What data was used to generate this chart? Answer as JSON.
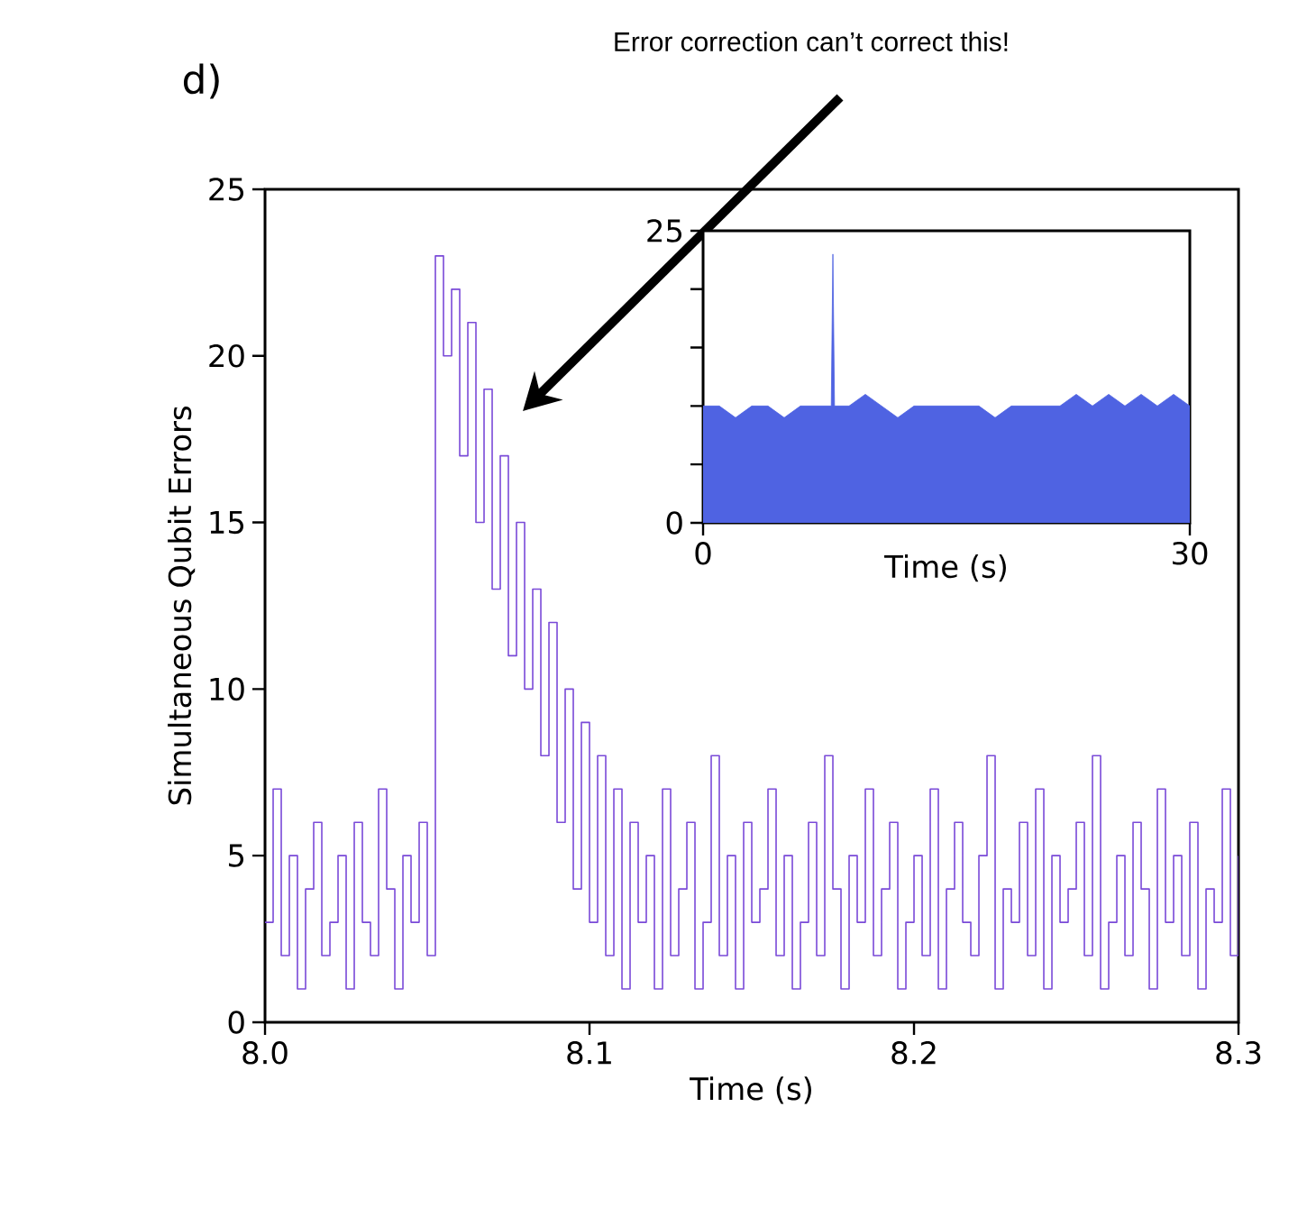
{
  "chart_data": [
    {
      "type": "step",
      "xlabel": "Time (s)",
      "ylabel": "Simultaneous Qubit Errors",
      "color": "#7a4ad8",
      "annotations": [
        "d)",
        "Error correction can’t correct this!"
      ],
      "xlim": [
        8.0,
        8.3
      ],
      "ylim": [
        0,
        25
      ],
      "xticks": [
        {
          "value": 8.0,
          "label": "8.0"
        },
        8.1,
        8.2,
        8.3
      ],
      "yticks": [
        0,
        5,
        10,
        15,
        20,
        25
      ],
      "x": [
        8.0,
        8.0025,
        8.005,
        8.0075,
        8.01,
        8.0125,
        8.015,
        8.0175,
        8.02,
        8.0225,
        8.025,
        8.0275,
        8.03,
        8.0325,
        8.035,
        8.0375,
        8.04,
        8.0425,
        8.045,
        8.0475,
        8.05,
        8.0525,
        8.055,
        8.0575,
        8.06,
        8.0625,
        8.065,
        8.0675,
        8.07,
        8.0725,
        8.075,
        8.0775,
        8.08,
        8.0825,
        8.085,
        8.0875,
        8.09,
        8.0925,
        8.095,
        8.0975,
        8.1,
        8.1025,
        8.105,
        8.1075,
        8.11,
        8.1125,
        8.115,
        8.1175,
        8.12,
        8.1225,
        8.125,
        8.1275,
        8.13,
        8.1325,
        8.135,
        8.1375,
        8.14,
        8.1425,
        8.145,
        8.1475,
        8.15,
        8.1525,
        8.155,
        8.1575,
        8.16,
        8.1625,
        8.165,
        8.1675,
        8.17,
        8.1725,
        8.175,
        8.1775,
        8.18,
        8.1825,
        8.185,
        8.1875,
        8.19,
        8.1925,
        8.195,
        8.1975,
        8.2,
        8.2025,
        8.205,
        8.2075,
        8.21,
        8.2125,
        8.215,
        8.2175,
        8.22,
        8.2225,
        8.225,
        8.2275,
        8.23,
        8.2325,
        8.235,
        8.2375,
        8.24,
        8.2425,
        8.245,
        8.2475,
        8.25,
        8.2525,
        8.255,
        8.2575,
        8.26,
        8.2625,
        8.265,
        8.2675,
        8.27,
        8.2725,
        8.275,
        8.2775,
        8.28,
        8.2825,
        8.285,
        8.2875,
        8.29,
        8.2925,
        8.295,
        8.2975,
        8.3
      ],
      "values": [
        3,
        7,
        2,
        5,
        1,
        4,
        6,
        2,
        3,
        5,
        1,
        6,
        3,
        2,
        7,
        4,
        1,
        5,
        3,
        6,
        2,
        23,
        20,
        22,
        17,
        21,
        15,
        19,
        13,
        17,
        11,
        15,
        10,
        13,
        8,
        12,
        6,
        10,
        4,
        9,
        3,
        8,
        2,
        7,
        1,
        6,
        3,
        5,
        1,
        7,
        2,
        4,
        6,
        1,
        3,
        8,
        2,
        5,
        1,
        6,
        3,
        4,
        7,
        2,
        5,
        1,
        3,
        6,
        2,
        8,
        4,
        1,
        5,
        3,
        7,
        2,
        4,
        6,
        1,
        3,
        5,
        2,
        7,
        1,
        4,
        6,
        3,
        2,
        5,
        8,
        1,
        4,
        3,
        6,
        2,
        7,
        1,
        5,
        3,
        4,
        6,
        2,
        8,
        1,
        3,
        5,
        2,
        6,
        4,
        1,
        7,
        3,
        5,
        2,
        6,
        1,
        4,
        3,
        7,
        2,
        5
      ]
    },
    {
      "type": "area",
      "xlabel": "Time (s)",
      "color": "#4f63e2",
      "xlim": [
        0,
        30
      ],
      "ylim": [
        0,
        25
      ],
      "xticks": [
        0,
        30
      ],
      "yticks": [
        0,
        {
          "value": 5,
          "label": null
        },
        {
          "value": 10,
          "label": null
        },
        {
          "value": 15,
          "label": null
        },
        {
          "value": 20,
          "label": null
        },
        25
      ],
      "x": [
        0,
        1,
        2,
        3,
        4,
        5,
        6,
        7,
        7.9,
        8,
        8.1,
        9,
        10,
        11,
        12,
        13,
        14,
        15,
        16,
        17,
        18,
        19,
        20,
        21,
        22,
        23,
        24,
        25,
        26,
        27,
        28,
        29,
        30
      ],
      "values": [
        10,
        10,
        9,
        10,
        10,
        9,
        10,
        10,
        10,
        23,
        10,
        10,
        11,
        10,
        9,
        10,
        10,
        10,
        10,
        10,
        9,
        10,
        10,
        10,
        10,
        11,
        10,
        11,
        10,
        11,
        10,
        11,
        10
      ]
    }
  ]
}
